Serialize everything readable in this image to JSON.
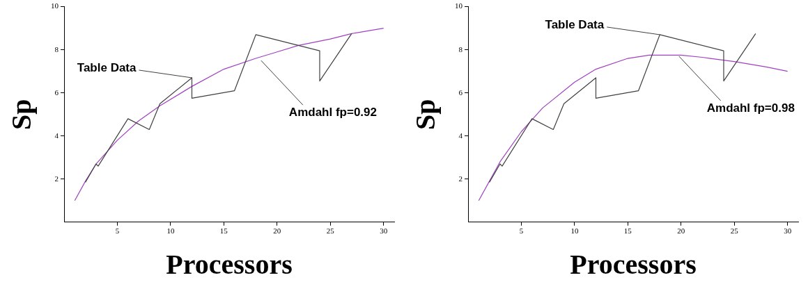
{
  "chart_data": [
    {
      "type": "line",
      "xlabel": "Processors",
      "ylabel": "Sp",
      "xlim": [
        0,
        31
      ],
      "ylim": [
        0,
        10
      ],
      "xticks": [
        5,
        10,
        15,
        20,
        25,
        30
      ],
      "yticks": [
        2,
        4,
        6,
        8,
        10
      ],
      "grid": false,
      "legend": false,
      "marker": "none",
      "line_style": "solid",
      "series": [
        {
          "color": "#404040",
          "x": [
            2,
            3,
            3.2,
            6,
            8,
            9,
            12,
            12,
            16,
            18,
            24,
            24,
            27
          ],
          "values": [
            1.85,
            2.7,
            2.6,
            4.8,
            4.3,
            5.5,
            6.7,
            5.75,
            6.1,
            8.7,
            7.95,
            6.55,
            8.75
          ]
        },
        {
          "color": "#a040c0",
          "x": [
            1,
            2,
            3,
            5,
            7,
            9,
            12,
            15,
            18,
            20,
            22,
            25,
            27,
            30
          ],
          "values": [
            1,
            1.9,
            2.7,
            3.8,
            4.7,
            5.4,
            6.3,
            7.1,
            7.6,
            7.9,
            8.2,
            8.5,
            8.75,
            9.0
          ]
        }
      ],
      "annotations": [
        {
          "text": "Table Data",
          "x": 12,
          "y": 6.7
        },
        {
          "text": "Amdahl fp=0.92",
          "x": 18.5,
          "y": 7.5
        }
      ]
    },
    {
      "type": "line",
      "xlabel": "Processors",
      "ylabel": "Sp",
      "xlim": [
        0,
        31
      ],
      "ylim": [
        0,
        10
      ],
      "xticks": [
        5,
        10,
        15,
        20,
        25,
        30
      ],
      "yticks": [
        2,
        4,
        6,
        8,
        10
      ],
      "grid": false,
      "legend": false,
      "marker": "none",
      "line_style": "solid",
      "series": [
        {
          "color": "#404040",
          "x": [
            2,
            3,
            3.2,
            6,
            8,
            9,
            12,
            12,
            16,
            18,
            24,
            24,
            27
          ],
          "values": [
            1.85,
            2.7,
            2.6,
            4.8,
            4.3,
            5.5,
            6.7,
            5.75,
            6.1,
            8.7,
            7.95,
            6.55,
            8.75
          ]
        },
        {
          "color": "#a040c0",
          "x": [
            1,
            2,
            3,
            5,
            7,
            10,
            12,
            15,
            17,
            20,
            22,
            25,
            28,
            30
          ],
          "values": [
            1,
            1.9,
            2.8,
            4.2,
            5.3,
            6.5,
            7.1,
            7.6,
            7.75,
            7.75,
            7.65,
            7.45,
            7.2,
            7.0
          ]
        }
      ],
      "annotations": [
        {
          "text": "Table Data",
          "x": 18,
          "y": 8.7
        },
        {
          "text": "Amdahl fp=0.98",
          "x": 19.8,
          "y": 7.7
        }
      ]
    }
  ]
}
